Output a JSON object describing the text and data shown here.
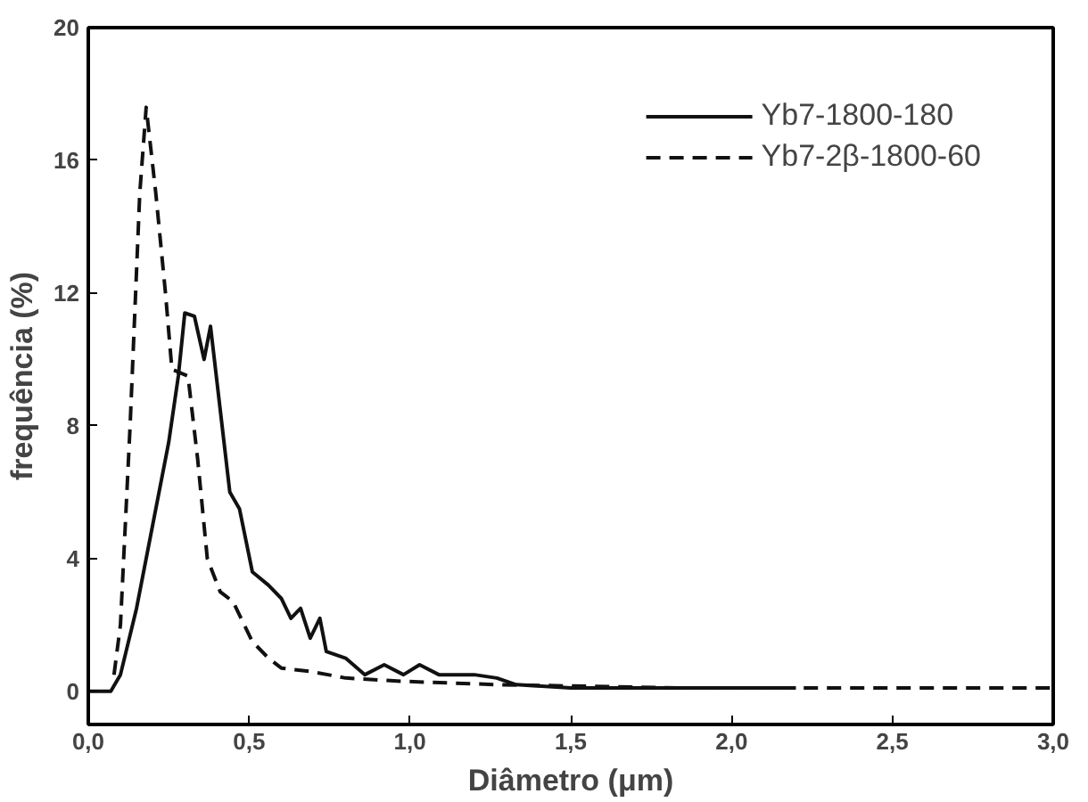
{
  "chart_data": {
    "type": "line",
    "xlabel": "Diâmetro (μm)",
    "ylabel": "frequência (%)",
    "xlim": [
      0,
      3
    ],
    "ylim": [
      -1,
      20
    ],
    "xticks": [
      {
        "value": 0,
        "label": "0,0"
      },
      {
        "value": 0.5,
        "label": "0,5"
      },
      {
        "value": 1,
        "label": "1,0"
      },
      {
        "value": 1.5,
        "label": "1,5"
      },
      {
        "value": 2,
        "label": "2,0"
      },
      {
        "value": 2.5,
        "label": "2,5"
      },
      {
        "value": 3,
        "label": "3,0"
      }
    ],
    "yticks": [
      0,
      4,
      8,
      12,
      16,
      20
    ],
    "grid": false,
    "legend": "top right",
    "marker": "none",
    "series": [
      {
        "name": "Yb7-1800-180",
        "color": "#111111",
        "line_style": "solid",
        "x": [
          0,
          0.07,
          0.1,
          0.15,
          0.21,
          0.25,
          0.28,
          0.3,
          0.33,
          0.36,
          0.38,
          0.41,
          0.44,
          0.47,
          0.51,
          0.56,
          0.6,
          0.63,
          0.66,
          0.69,
          0.72,
          0.74,
          0.8,
          0.86,
          0.92,
          0.98,
          1.03,
          1.09,
          1.2,
          1.27,
          1.33,
          1.5,
          2.2
        ],
        "values": [
          0,
          0,
          0.5,
          2.5,
          5.5,
          7.5,
          9.5,
          11.4,
          11.3,
          10,
          11,
          8.5,
          6,
          5.5,
          3.6,
          3.2,
          2.8,
          2.2,
          2.5,
          1.6,
          2.2,
          1.2,
          1.0,
          0.5,
          0.8,
          0.5,
          0.8,
          0.5,
          0.5,
          0.4,
          0.2,
          0.1,
          0.1
        ]
      },
      {
        "name": "Yb7-2β-1800-60",
        "color": "#111111",
        "line_style": "dashed",
        "x": [
          0.08,
          0.1,
          0.13,
          0.16,
          0.18,
          0.21,
          0.24,
          0.26,
          0.31,
          0.34,
          0.37,
          0.41,
          0.45,
          0.51,
          0.56,
          0.6,
          0.69,
          0.8,
          0.98,
          1.27,
          1.85,
          3.0
        ],
        "values": [
          0.5,
          2,
          8,
          15,
          17.6,
          15,
          12,
          9.7,
          9.5,
          7,
          4,
          3,
          2.7,
          1.5,
          1.0,
          0.7,
          0.6,
          0.4,
          0.3,
          0.2,
          0.1,
          0.1
        ]
      }
    ]
  }
}
